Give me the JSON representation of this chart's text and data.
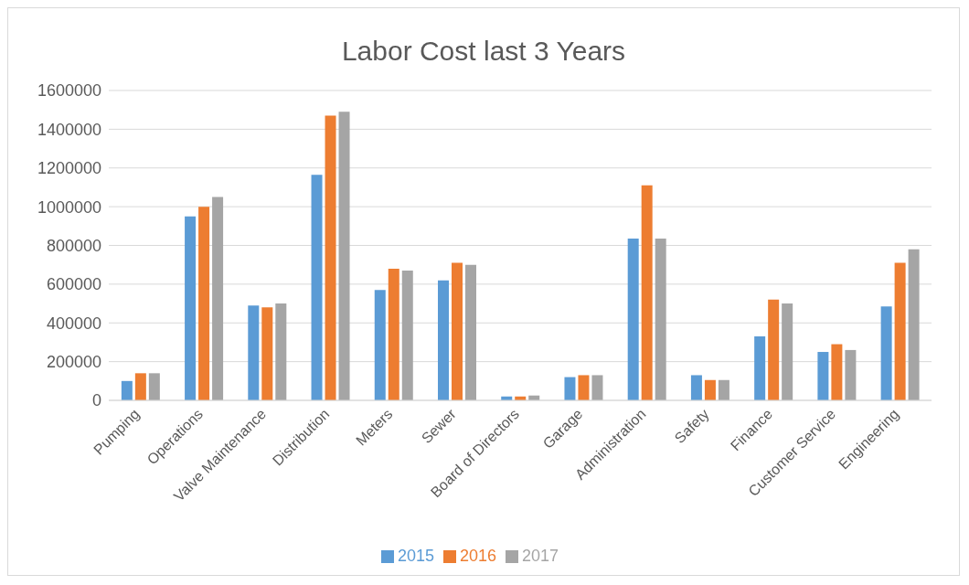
{
  "chart_data": {
    "type": "bar",
    "title": "Labor Cost last 3 Years",
    "categories": [
      "Pumping",
      "Operations",
      "Valve Maintenance",
      "Distribution",
      "Meters",
      "Sewer",
      "Board of Directors",
      "Garage",
      "Administration",
      "Safety",
      "Finance",
      "Customer Service",
      "Engineering"
    ],
    "series": [
      {
        "name": "2015",
        "color": "#5b9bd5",
        "values": [
          100000,
          950000,
          490000,
          1165000,
          570000,
          620000,
          20000,
          120000,
          835000,
          130000,
          330000,
          250000,
          485000
        ]
      },
      {
        "name": "2016",
        "color": "#ed7d31",
        "values": [
          140000,
          1000000,
          480000,
          1470000,
          680000,
          710000,
          20000,
          130000,
          1110000,
          105000,
          520000,
          290000,
          710000
        ]
      },
      {
        "name": "2017",
        "color": "#a5a5a5",
        "values": [
          140000,
          1050000,
          500000,
          1490000,
          670000,
          700000,
          25000,
          130000,
          835000,
          105000,
          500000,
          260000,
          780000
        ]
      }
    ],
    "ylim": [
      0,
      1600000
    ],
    "yticks": [
      0,
      200000,
      400000,
      600000,
      800000,
      1000000,
      1200000,
      1400000,
      1600000
    ],
    "grid": "y",
    "legend": "bottom"
  }
}
